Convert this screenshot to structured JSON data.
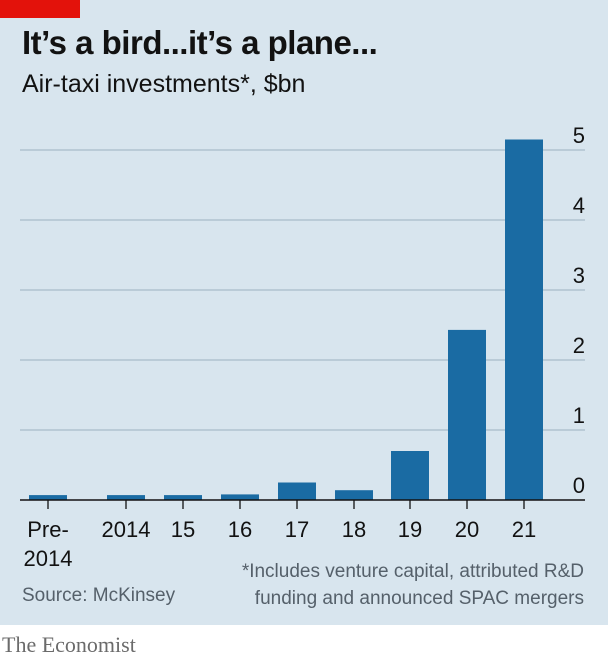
{
  "header": {
    "title": "It’s a bird...it’s a plane...",
    "subtitle": "Air-taxi investments*, $bn"
  },
  "footer": {
    "source": "Source: McKinsey",
    "footnote_line1": "*Includes venture capital, attributed R&D",
    "footnote_line2": "funding and announced SPAC mergers",
    "brand": "The Economist"
  },
  "colors": {
    "background": "#d8e5ee",
    "bar": "#1a6ba3",
    "accent_red": "#e3120b",
    "gridline": "#a9bcc9",
    "axis": "#121212"
  },
  "chart_data": {
    "type": "bar",
    "title": "It’s a bird...it’s a plane...",
    "subtitle": "Air-taxi investments*, $bn",
    "categories": [
      "Pre-2014",
      "2014",
      "15",
      "16",
      "17",
      "18",
      "19",
      "20",
      "21"
    ],
    "category_labels": [
      [
        "Pre-",
        "2014"
      ],
      [
        "2014"
      ],
      [
        "15"
      ],
      [
        "16"
      ],
      [
        "17"
      ],
      [
        "18"
      ],
      [
        "19"
      ],
      [
        "20"
      ],
      [
        "21"
      ]
    ],
    "values": [
      0.07,
      0.07,
      0.07,
      0.08,
      0.25,
      0.14,
      0.7,
      2.43,
      5.15
    ],
    "ylim": [
      0,
      5
    ],
    "yticks": [
      0,
      1,
      2,
      3,
      4,
      5
    ],
    "y_axis_side": "right",
    "grid": true
  }
}
